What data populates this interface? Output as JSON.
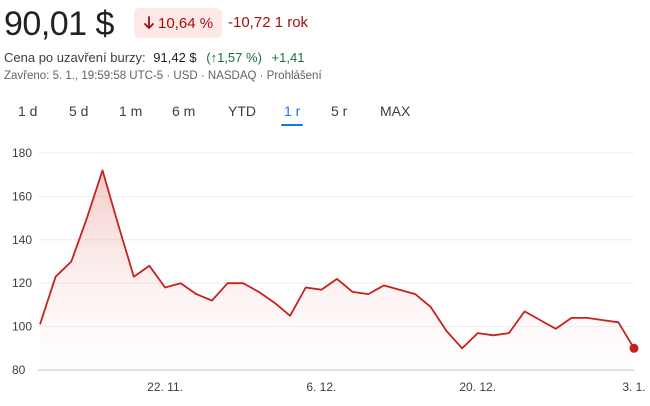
{
  "header": {
    "price": "90,01 $",
    "badge_pct": "10,64 %",
    "change": "-10,72 1 rok",
    "close_label": "Cena po uzavření burzy:",
    "close_price": "91,42 $",
    "close_pct": "(↑1,57 %)",
    "close_change": "+1,41",
    "meta_closed": "Zavřeno: 5. 1., 19:59:58 UTC-5 · USD · NASDAQ · ",
    "meta_disclaimer": "Prohlášení",
    "negative_color": "#a50e0e",
    "positive_color": "#137333"
  },
  "tabs": [
    {
      "label": "1 d",
      "active": false
    },
    {
      "label": "5 d",
      "active": false
    },
    {
      "label": "1 m",
      "active": false
    },
    {
      "label": "6 m",
      "active": false
    },
    {
      "label": "YTD",
      "active": false
    },
    {
      "label": "1 r",
      "active": true
    },
    {
      "label": "5 r",
      "active": false
    },
    {
      "label": "MAX",
      "active": false
    }
  ],
  "chart_data": {
    "type": "area",
    "line_color": "#c5221f",
    "ylim": [
      80,
      180
    ],
    "yticks": [
      80,
      100,
      120,
      140,
      160,
      180
    ],
    "ytick_labels": [
      "80",
      "100",
      "120",
      "140",
      "160",
      "180"
    ],
    "grid": true,
    "xticks": [
      {
        "label": "22. 11.",
        "index": 8
      },
      {
        "label": "6. 12.",
        "index": 18
      },
      {
        "label": "20. 12.",
        "index": 28
      },
      {
        "label": "3. 1.",
        "index": 38
      }
    ],
    "values": [
      101,
      123,
      130,
      150,
      172,
      147,
      123,
      128,
      118,
      120,
      115,
      112,
      120,
      120,
      116,
      111,
      105,
      118,
      117,
      122,
      116,
      115,
      119,
      117,
      115,
      109,
      98,
      90,
      97,
      96,
      97,
      107,
      103,
      99,
      104,
      104,
      103,
      102,
      90
    ]
  }
}
